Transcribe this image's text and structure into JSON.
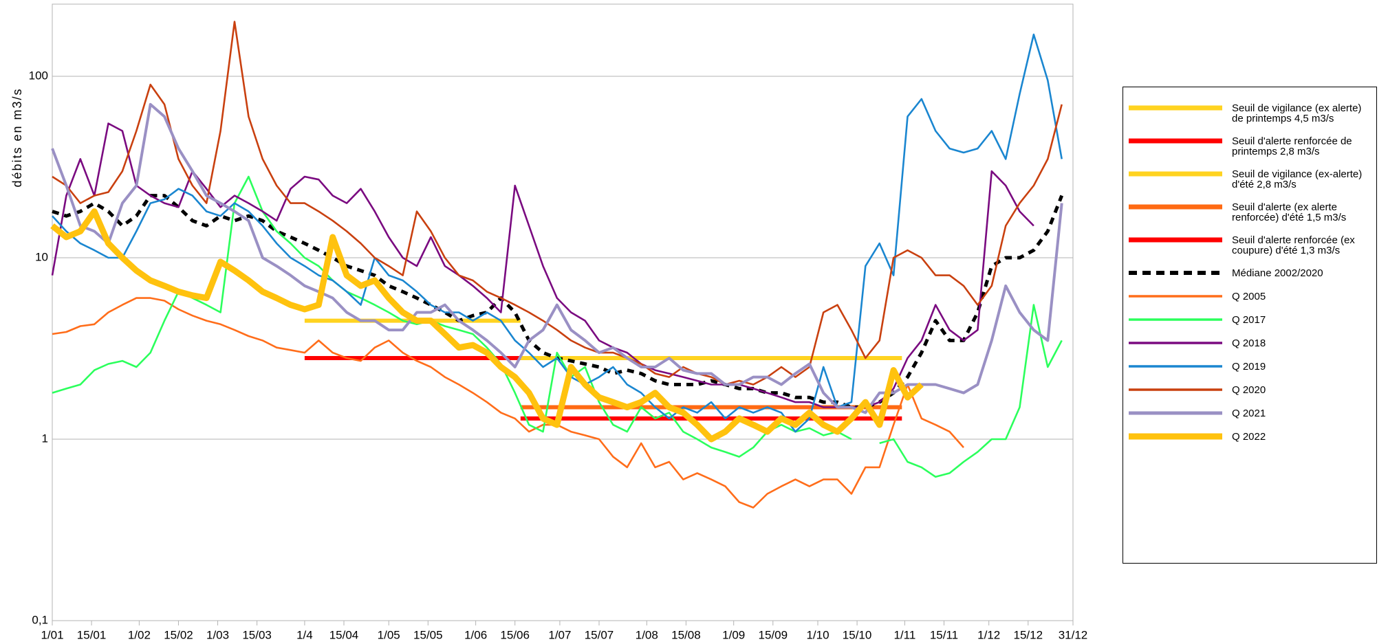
{
  "chart_data": {
    "type": "line",
    "ylabel": "débits en m3/s",
    "log_scale": true,
    "grid": true,
    "legend": "right",
    "ylim": [
      0.1,
      250
    ],
    "yticks": [
      {
        "value": 0.1,
        "label": "0,1"
      },
      1,
      10,
      100
    ],
    "xlim": [
      1,
      365
    ],
    "xticks": [
      {
        "value": 1,
        "label": "1/01"
      },
      {
        "value": 15,
        "label": "15/01"
      },
      {
        "value": 32,
        "label": "1/02"
      },
      {
        "value": 46,
        "label": "15/02"
      },
      {
        "value": 60,
        "label": "1/03"
      },
      {
        "value": 74,
        "label": "15/03"
      },
      {
        "value": 91,
        "label": "1/4"
      },
      {
        "value": 105,
        "label": "15/04"
      },
      {
        "value": 121,
        "label": "1/05"
      },
      {
        "value": 135,
        "label": "15/05"
      },
      {
        "value": 152,
        "label": "1/06"
      },
      {
        "value": 166,
        "label": "15/06"
      },
      {
        "value": 182,
        "label": "1/07"
      },
      {
        "value": 196,
        "label": "15/07"
      },
      {
        "value": 213,
        "label": "1/08"
      },
      {
        "value": 227,
        "label": "15/08"
      },
      {
        "value": 244,
        "label": "1/09"
      },
      {
        "value": 258,
        "label": "15/09"
      },
      {
        "value": 274,
        "label": "1/10"
      },
      {
        "value": 288,
        "label": "15/10"
      },
      {
        "value": 305,
        "label": "1/11"
      },
      {
        "value": 319,
        "label": "15/11"
      },
      {
        "value": 335,
        "label": "1/12"
      },
      {
        "value": 349,
        "label": "15/12"
      },
      {
        "value": 365,
        "label": "31/12"
      }
    ],
    "x": [
      1,
      6,
      11,
      16,
      21,
      26,
      31,
      36,
      41,
      46,
      51,
      56,
      61,
      66,
      71,
      76,
      81,
      86,
      91,
      96,
      101,
      106,
      111,
      116,
      121,
      126,
      131,
      136,
      141,
      146,
      151,
      156,
      161,
      166,
      171,
      176,
      181,
      186,
      191,
      196,
      201,
      206,
      211,
      216,
      221,
      226,
      231,
      236,
      241,
      246,
      251,
      256,
      261,
      266,
      271,
      276,
      281,
      286,
      291,
      296,
      301,
      306,
      311,
      316,
      321,
      326,
      331,
      336,
      341,
      346,
      351,
      356,
      361
    ],
    "series": [
      {
        "name": "Seuil de vigilance (ex alerte) de printemps 4,5 m3/s",
        "color": "#ffd320",
        "width": 6,
        "x": [
          91,
          168
        ],
        "values": [
          4.5,
          4.5
        ]
      },
      {
        "name": "Seuil d'alerte renforcée de printemps 2,8 m3/s",
        "color": "#ff0000",
        "width": 6,
        "x": [
          91,
          168
        ],
        "values": [
          2.8,
          2.8
        ]
      },
      {
        "name": "Seuil de vigilance (ex-alerte) d'été 2,8 m3/s",
        "color": "#ffd320",
        "width": 6,
        "x": [
          168,
          304
        ],
        "values": [
          2.8,
          2.8
        ]
      },
      {
        "name": "Seuil d'alerte (ex alerte renforcée) d'été 1,5 m3/s",
        "color": "#ff6a13",
        "width": 6,
        "x": [
          168,
          304
        ],
        "values": [
          1.5,
          1.5
        ]
      },
      {
        "name": "Seuil d'alerte renforcée (ex coupure) d'été 1,3 m3/s",
        "color": "#ff0000",
        "width": 6,
        "x": [
          168,
          304
        ],
        "values": [
          1.3,
          1.3
        ]
      },
      {
        "name": "Médiane 2002/2020",
        "color": "#000000",
        "width": 5,
        "dash": true,
        "values": [
          18,
          17,
          18,
          20,
          18,
          15,
          17,
          22,
          22,
          19,
          16,
          15,
          17,
          16,
          17,
          16,
          14,
          13,
          12,
          11,
          10,
          9,
          8.5,
          8,
          7,
          6.5,
          6,
          5.5,
          5,
          4.5,
          4.8,
          5,
          6,
          5,
          3.5,
          3,
          2.8,
          2.7,
          2.6,
          2.5,
          2.3,
          2.4,
          2.3,
          2.1,
          2,
          2,
          2,
          2.1,
          2,
          1.9,
          1.9,
          1.8,
          1.8,
          1.7,
          1.7,
          1.6,
          1.6,
          1.5,
          1.5,
          1.6,
          1.8,
          2.2,
          3,
          4.5,
          3.5,
          3.5,
          5,
          9,
          10,
          10,
          11,
          14,
          22
        ]
      },
      {
        "name": "Q 2005",
        "color": "#ff6d1a",
        "width": 2.6,
        "values": [
          3.8,
          3.9,
          4.2,
          4.3,
          5,
          5.5,
          6,
          6,
          5.8,
          5.2,
          4.8,
          4.5,
          4.3,
          4,
          3.7,
          3.5,
          3.2,
          3.1,
          3,
          3.5,
          3,
          2.8,
          2.7,
          3.2,
          3.5,
          3,
          2.7,
          2.5,
          2.2,
          2,
          1.8,
          1.6,
          1.4,
          1.3,
          1.1,
          1.2,
          1.2,
          1.1,
          1.05,
          1,
          0.8,
          0.7,
          0.95,
          0.7,
          0.75,
          0.6,
          0.65,
          0.6,
          0.55,
          0.45,
          0.42,
          0.5,
          0.55,
          0.6,
          0.55,
          0.6,
          0.6,
          0.5,
          0.7,
          0.7,
          1.2,
          2,
          1.3,
          1.2,
          1.1,
          0.9,
          null,
          null,
          null,
          null,
          null,
          null,
          null
        ]
      },
      {
        "name": "Q 2017",
        "color": "#2bff5c",
        "width": 2.6,
        "values": [
          1.8,
          1.9,
          2,
          2.4,
          2.6,
          2.7,
          2.5,
          3,
          4.5,
          6.5,
          6,
          5.5,
          5,
          20,
          28,
          18,
          14,
          12,
          10,
          9,
          7.5,
          6.5,
          6,
          5.5,
          5,
          4.5,
          4.3,
          4.5,
          4.2,
          4,
          3.8,
          3.2,
          2.6,
          1.8,
          1.2,
          1.1,
          3,
          2.2,
          2.5,
          1.6,
          1.2,
          1.1,
          1.5,
          1.3,
          1.4,
          1.1,
          1,
          0.9,
          0.85,
          0.8,
          0.9,
          1.1,
          1.2,
          1.1,
          1.15,
          1.05,
          1.1,
          1,
          null,
          0.95,
          1,
          0.75,
          0.7,
          0.62,
          0.65,
          0.75,
          0.85,
          1,
          1,
          1.5,
          5.5,
          2.5,
          3.5
        ]
      },
      {
        "name": "Q 2018",
        "color": "#7a0a80",
        "width": 2.6,
        "values": [
          8,
          22,
          35,
          22,
          55,
          50,
          25,
          22,
          20,
          19,
          30,
          24,
          19,
          22,
          20,
          18,
          16,
          24,
          28,
          27,
          22,
          20,
          24,
          18,
          13,
          10,
          9,
          13,
          9,
          8,
          7,
          6,
          5,
          25,
          15,
          9,
          6,
          5,
          4.5,
          3.5,
          3.2,
          3,
          2.6,
          2.4,
          2.3,
          2.2,
          2.1,
          2,
          2,
          2,
          1.9,
          1.8,
          1.7,
          1.6,
          1.6,
          1.5,
          1.5,
          1.5,
          1.5,
          1.6,
          1.9,
          2.8,
          3.5,
          5.5,
          4,
          3.5,
          4,
          30,
          25,
          18,
          15,
          null,
          null
        ]
      },
      {
        "name": "Q 2019",
        "color": "#1a86d0",
        "width": 2.6,
        "values": [
          17,
          14,
          12,
          11,
          10,
          10,
          14,
          20,
          21,
          24,
          22,
          18,
          17,
          20,
          18,
          15,
          12,
          10,
          9,
          8,
          7.5,
          6.5,
          5.5,
          10,
          8,
          7.5,
          6.5,
          5.5,
          5,
          5,
          4.5,
          5,
          4.5,
          3.5,
          3,
          2.5,
          2.8,
          2.2,
          2,
          2.2,
          2.5,
          2,
          1.8,
          1.5,
          1.3,
          1.5,
          1.4,
          1.6,
          1.3,
          1.5,
          1.4,
          1.5,
          1.4,
          1.1,
          1.3,
          2.5,
          1.5,
          1.6,
          9,
          12,
          8,
          60,
          75,
          50,
          40,
          38,
          40,
          50,
          35,
          80,
          170,
          95,
          35
        ]
      },
      {
        "name": "Q 2020",
        "color": "#c9400f",
        "width": 2.6,
        "values": [
          28,
          25,
          20,
          22,
          23,
          30,
          50,
          90,
          70,
          35,
          25,
          20,
          50,
          200,
          60,
          35,
          25,
          20,
          20,
          18,
          16,
          14,
          12,
          10,
          9,
          8,
          18,
          14,
          10,
          8,
          7.5,
          6.5,
          6,
          5.5,
          5,
          4.5,
          4,
          3.5,
          3.2,
          3,
          3,
          2.8,
          2.6,
          2.3,
          2.2,
          2.5,
          2.3,
          2.2,
          2,
          2.1,
          2,
          2.2,
          2.5,
          2.2,
          2.5,
          5,
          5.5,
          4,
          2.8,
          3.5,
          10,
          11,
          10,
          8,
          8,
          7,
          5.5,
          7,
          15,
          20,
          25,
          35,
          70
        ]
      },
      {
        "name": "Q 2021",
        "color": "#9a90c4",
        "width": 4,
        "values": [
          40,
          25,
          15,
          14,
          12,
          20,
          25,
          70,
          60,
          40,
          30,
          22,
          20,
          18,
          16,
          10,
          9,
          8,
          7,
          6.5,
          6,
          5,
          4.5,
          4.5,
          4,
          4,
          5,
          5,
          5.5,
          4.5,
          4,
          3.5,
          3,
          2.5,
          3.5,
          4,
          5.5,
          4,
          3.5,
          3,
          3.2,
          2.8,
          2.5,
          2.5,
          2.8,
          2.4,
          2.3,
          2.3,
          2,
          2,
          2.2,
          2.2,
          2,
          2.3,
          2.6,
          1.8,
          1.5,
          1.5,
          1.4,
          1.8,
          1.8,
          2,
          2,
          2,
          1.9,
          1.8,
          2,
          3.5,
          7,
          5,
          4,
          3.5,
          20
        ]
      },
      {
        "name": "Q 2022",
        "color": "#ffc20e",
        "width": 9,
        "values": [
          15,
          13,
          14,
          18,
          12,
          10,
          8.5,
          7.5,
          7,
          6.5,
          6.2,
          6,
          9.5,
          8.5,
          7.5,
          6.5,
          6,
          5.5,
          5.2,
          5.5,
          13,
          8,
          7,
          7.5,
          6,
          5,
          4.5,
          4.5,
          3.8,
          3.2,
          3.3,
          3,
          2.5,
          2.2,
          1.8,
          1.3,
          1.2,
          2.5,
          2,
          1.7,
          1.6,
          1.5,
          1.6,
          1.8,
          1.5,
          1.4,
          1.2,
          1,
          1.1,
          1.3,
          1.2,
          1.1,
          1.3,
          1.2,
          1.4,
          1.2,
          1.1,
          1.3,
          1.6,
          1.2,
          2.4,
          1.7,
          2,
          null,
          null,
          null,
          null,
          null,
          null,
          null,
          null,
          null,
          null
        ]
      }
    ]
  }
}
